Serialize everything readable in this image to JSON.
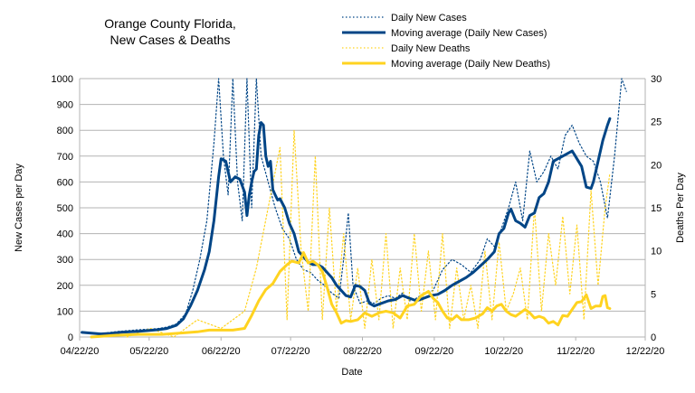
{
  "chart_data": {
    "type": "line",
    "title_line1": "Orange County Florida,",
    "title_line2": "New Cases & Deaths",
    "xlabel": "Date",
    "ylabel_left": "New Cases per Day",
    "ylabel_right": "Deaths Per Day",
    "x_ticks": [
      "04/22/20",
      "05/22/20",
      "06/22/20",
      "07/22/20",
      "08/22/20",
      "09/22/20",
      "10/22/20",
      "11/22/20",
      "12/22/20"
    ],
    "ylim_left": [
      0,
      1000
    ],
    "yticks_left": [
      0,
      100,
      200,
      300,
      400,
      500,
      600,
      700,
      800,
      900,
      1000
    ],
    "ylim_right": [
      0,
      30
    ],
    "yticks_right": [
      0,
      5,
      10,
      15,
      20,
      25,
      30
    ],
    "grid": true,
    "legend_position": "top-right",
    "colors": {
      "cases": "#004586",
      "deaths": "#ffd320",
      "grid": "#b3b3b3",
      "axis": "#b3b3b3"
    },
    "series": [
      {
        "name": "Daily New Cases",
        "style": "dotted",
        "axis": "left",
        "points": [
          [
            1,
            20
          ],
          [
            5,
            15
          ],
          [
            9,
            12
          ],
          [
            13,
            18
          ],
          [
            17,
            22
          ],
          [
            21,
            25
          ],
          [
            25,
            28
          ],
          [
            29,
            30
          ],
          [
            33,
            32
          ],
          [
            37,
            38
          ],
          [
            41,
            50
          ],
          [
            45,
            90
          ],
          [
            48,
            180
          ],
          [
            51,
            300
          ],
          [
            54,
            450
          ],
          [
            57,
            750
          ],
          [
            59,
            1000
          ],
          [
            61,
            700
          ],
          [
            63,
            550
          ],
          [
            65,
            1000
          ],
          [
            67,
            600
          ],
          [
            69,
            450
          ],
          [
            71,
            1000
          ],
          [
            73,
            500
          ],
          [
            75,
            1000
          ],
          [
            77,
            700
          ],
          [
            80,
            600
          ],
          [
            83,
            500
          ],
          [
            86,
            420
          ],
          [
            89,
            380
          ],
          [
            92,
            300
          ],
          [
            95,
            260
          ],
          [
            98,
            250
          ],
          [
            101,
            220
          ],
          [
            104,
            200
          ],
          [
            107,
            170
          ],
          [
            110,
            150
          ],
          [
            112,
            300
          ],
          [
            114,
            480
          ],
          [
            116,
            200
          ],
          [
            119,
            130
          ],
          [
            122,
            140
          ],
          [
            125,
            130
          ],
          [
            128,
            150
          ],
          [
            131,
            160
          ],
          [
            134,
            150
          ],
          [
            137,
            170
          ],
          [
            140,
            140
          ],
          [
            143,
            150
          ],
          [
            146,
            170
          ],
          [
            150,
            180
          ],
          [
            154,
            260
          ],
          [
            158,
            300
          ],
          [
            162,
            280
          ],
          [
            166,
            250
          ],
          [
            170,
            300
          ],
          [
            173,
            380
          ],
          [
            176,
            350
          ],
          [
            179,
            420
          ],
          [
            182,
            500
          ],
          [
            185,
            600
          ],
          [
            188,
            450
          ],
          [
            191,
            720
          ],
          [
            194,
            600
          ],
          [
            197,
            640
          ],
          [
            200,
            700
          ],
          [
            203,
            650
          ],
          [
            206,
            780
          ],
          [
            209,
            820
          ],
          [
            212,
            750
          ],
          [
            215,
            700
          ],
          [
            218,
            680
          ],
          [
            221,
            600
          ],
          [
            224,
            460
          ],
          [
            227,
            700
          ],
          [
            230,
            1000
          ],
          [
            232,
            950
          ]
        ]
      },
      {
        "name": "Moving average (Daily New Cases)",
        "style": "solid",
        "axis": "left",
        "points": [
          [
            1,
            18
          ],
          [
            5,
            15
          ],
          [
            9,
            12
          ],
          [
            13,
            14
          ],
          [
            17,
            18
          ],
          [
            21,
            20
          ],
          [
            25,
            22
          ],
          [
            29,
            25
          ],
          [
            33,
            28
          ],
          [
            37,
            33
          ],
          [
            41,
            45
          ],
          [
            44,
            70
          ],
          [
            47,
            120
          ],
          [
            50,
            180
          ],
          [
            53,
            260
          ],
          [
            55,
            330
          ],
          [
            57,
            450
          ],
          [
            59,
            620
          ],
          [
            60,
            690
          ],
          [
            62,
            680
          ],
          [
            64,
            600
          ],
          [
            66,
            620
          ],
          [
            68,
            610
          ],
          [
            70,
            560
          ],
          [
            71,
            470
          ],
          [
            72,
            550
          ],
          [
            73,
            600
          ],
          [
            74,
            640
          ],
          [
            75,
            650
          ],
          [
            76,
            780
          ],
          [
            77,
            830
          ],
          [
            78,
            820
          ],
          [
            79,
            700
          ],
          [
            80,
            660
          ],
          [
            81,
            680
          ],
          [
            82,
            570
          ],
          [
            83,
            550
          ],
          [
            84,
            530
          ],
          [
            85,
            535
          ],
          [
            87,
            500
          ],
          [
            89,
            440
          ],
          [
            91,
            400
          ],
          [
            93,
            330
          ],
          [
            95,
            310
          ],
          [
            97,
            290
          ],
          [
            99,
            280
          ],
          [
            101,
            280
          ],
          [
            103,
            270
          ],
          [
            105,
            250
          ],
          [
            107,
            230
          ],
          [
            109,
            200
          ],
          [
            111,
            180
          ],
          [
            113,
            160
          ],
          [
            115,
            155
          ],
          [
            117,
            200
          ],
          [
            119,
            195
          ],
          [
            121,
            180
          ],
          [
            123,
            130
          ],
          [
            125,
            120
          ],
          [
            128,
            130
          ],
          [
            131,
            140
          ],
          [
            134,
            145
          ],
          [
            137,
            160
          ],
          [
            140,
            150
          ],
          [
            143,
            140
          ],
          [
            146,
            150
          ],
          [
            149,
            160
          ],
          [
            152,
            165
          ],
          [
            155,
            180
          ],
          [
            158,
            200
          ],
          [
            161,
            215
          ],
          [
            164,
            230
          ],
          [
            167,
            250
          ],
          [
            170,
            275
          ],
          [
            173,
            300
          ],
          [
            176,
            330
          ],
          [
            178,
            400
          ],
          [
            180,
            420
          ],
          [
            182,
            480
          ],
          [
            183,
            495
          ],
          [
            185,
            450
          ],
          [
            187,
            440
          ],
          [
            189,
            425
          ],
          [
            191,
            470
          ],
          [
            193,
            480
          ],
          [
            195,
            540
          ],
          [
            197,
            555
          ],
          [
            199,
            600
          ],
          [
            201,
            680
          ],
          [
            203,
            690
          ],
          [
            205,
            700
          ],
          [
            207,
            710
          ],
          [
            209,
            720
          ],
          [
            211,
            690
          ],
          [
            213,
            660
          ],
          [
            215,
            580
          ],
          [
            217,
            575
          ],
          [
            218,
            600
          ],
          [
            220,
            680
          ],
          [
            222,
            760
          ],
          [
            224,
            820
          ],
          [
            225,
            845
          ]
        ]
      },
      {
        "name": "Daily New Deaths",
        "style": "dotted",
        "axis": "right",
        "points": [
          [
            20,
            0
          ],
          [
            30,
            1
          ],
          [
            40,
            0
          ],
          [
            50,
            2
          ],
          [
            60,
            1
          ],
          [
            70,
            3
          ],
          [
            75,
            8
          ],
          [
            80,
            15
          ],
          [
            85,
            22
          ],
          [
            88,
            2
          ],
          [
            91,
            24
          ],
          [
            94,
            10
          ],
          [
            97,
            3
          ],
          [
            100,
            21
          ],
          [
            103,
            2
          ],
          [
            106,
            15
          ],
          [
            109,
            3
          ],
          [
            112,
            12
          ],
          [
            115,
            2
          ],
          [
            118,
            8
          ],
          [
            121,
            1
          ],
          [
            124,
            9
          ],
          [
            127,
            2
          ],
          [
            130,
            12
          ],
          [
            133,
            1
          ],
          [
            136,
            8
          ],
          [
            139,
            2
          ],
          [
            142,
            12
          ],
          [
            145,
            3
          ],
          [
            148,
            10
          ],
          [
            151,
            2
          ],
          [
            154,
            12
          ],
          [
            157,
            1
          ],
          [
            160,
            8
          ],
          [
            163,
            2
          ],
          [
            166,
            6
          ],
          [
            169,
            1
          ],
          [
            172,
            10
          ],
          [
            175,
            2
          ],
          [
            178,
            11
          ],
          [
            181,
            3
          ],
          [
            184,
            5
          ],
          [
            187,
            8
          ],
          [
            190,
            2
          ],
          [
            193,
            15
          ],
          [
            196,
            3
          ],
          [
            199,
            12
          ],
          [
            202,
            6
          ],
          [
            205,
            14
          ],
          [
            208,
            5
          ],
          [
            211,
            13
          ],
          [
            214,
            2
          ],
          [
            217,
            17
          ],
          [
            220,
            6
          ],
          [
            223,
            15
          ],
          [
            225,
            19
          ]
        ]
      },
      {
        "name": "Moving average (Daily New Deaths)",
        "style": "solid",
        "axis": "right",
        "points": [
          [
            5,
            0
          ],
          [
            15,
            0.2
          ],
          [
            25,
            0.3
          ],
          [
            35,
            0.3
          ],
          [
            45,
            0.5
          ],
          [
            50,
            0.6
          ],
          [
            55,
            0.8
          ],
          [
            60,
            0.8
          ],
          [
            65,
            0.8
          ],
          [
            70,
            1.0
          ],
          [
            73,
            2.5
          ],
          [
            76,
            4.2
          ],
          [
            79,
            5.5
          ],
          [
            82,
            6.2
          ],
          [
            85,
            7.6
          ],
          [
            88,
            8.4
          ],
          [
            90,
            8.8
          ],
          [
            93,
            8.6
          ],
          [
            95,
            9.8
          ],
          [
            97,
            8.6
          ],
          [
            99,
            8.8
          ],
          [
            101,
            8.4
          ],
          [
            103,
            7.6
          ],
          [
            105,
            5.8
          ],
          [
            107,
            3.8
          ],
          [
            109,
            2.8
          ],
          [
            111,
            1.6
          ],
          [
            113,
            1.9
          ],
          [
            115,
            1.8
          ],
          [
            118,
            2.0
          ],
          [
            121,
            2.8
          ],
          [
            124,
            2.4
          ],
          [
            127,
            2.8
          ],
          [
            130,
            3.0
          ],
          [
            133,
            2.8
          ],
          [
            136,
            2.2
          ],
          [
            139,
            3.6
          ],
          [
            142,
            3.8
          ],
          [
            145,
            4.8
          ],
          [
            148,
            5.3
          ],
          [
            150,
            4.5
          ],
          [
            152,
            4.0
          ],
          [
            154,
            3.0
          ],
          [
            156,
            2.2
          ],
          [
            158,
            2.0
          ],
          [
            160,
            2.5
          ],
          [
            162,
            2.0
          ],
          [
            165,
            2.0
          ],
          [
            168,
            2.2
          ],
          [
            171,
            2.7
          ],
          [
            173,
            3.4
          ],
          [
            175,
            3.0
          ],
          [
            177,
            3.6
          ],
          [
            179,
            3.8
          ],
          [
            181,
            3.0
          ],
          [
            183,
            2.6
          ],
          [
            185,
            2.4
          ],
          [
            187,
            2.8
          ],
          [
            189,
            3.2
          ],
          [
            191,
            2.8
          ],
          [
            193,
            2.2
          ],
          [
            195,
            2.4
          ],
          [
            197,
            2.2
          ],
          [
            199,
            1.6
          ],
          [
            201,
            1.8
          ],
          [
            203,
            1.4
          ],
          [
            205,
            2.5
          ],
          [
            207,
            2.4
          ],
          [
            209,
            3.2
          ],
          [
            211,
            4.0
          ],
          [
            213,
            4.1
          ],
          [
            215,
            4.9
          ],
          [
            217,
            3.3
          ],
          [
            219,
            3.6
          ],
          [
            221,
            3.6
          ],
          [
            222,
            4.7
          ],
          [
            223,
            4.8
          ],
          [
            224,
            3.4
          ],
          [
            225,
            3.3
          ]
        ]
      }
    ]
  }
}
